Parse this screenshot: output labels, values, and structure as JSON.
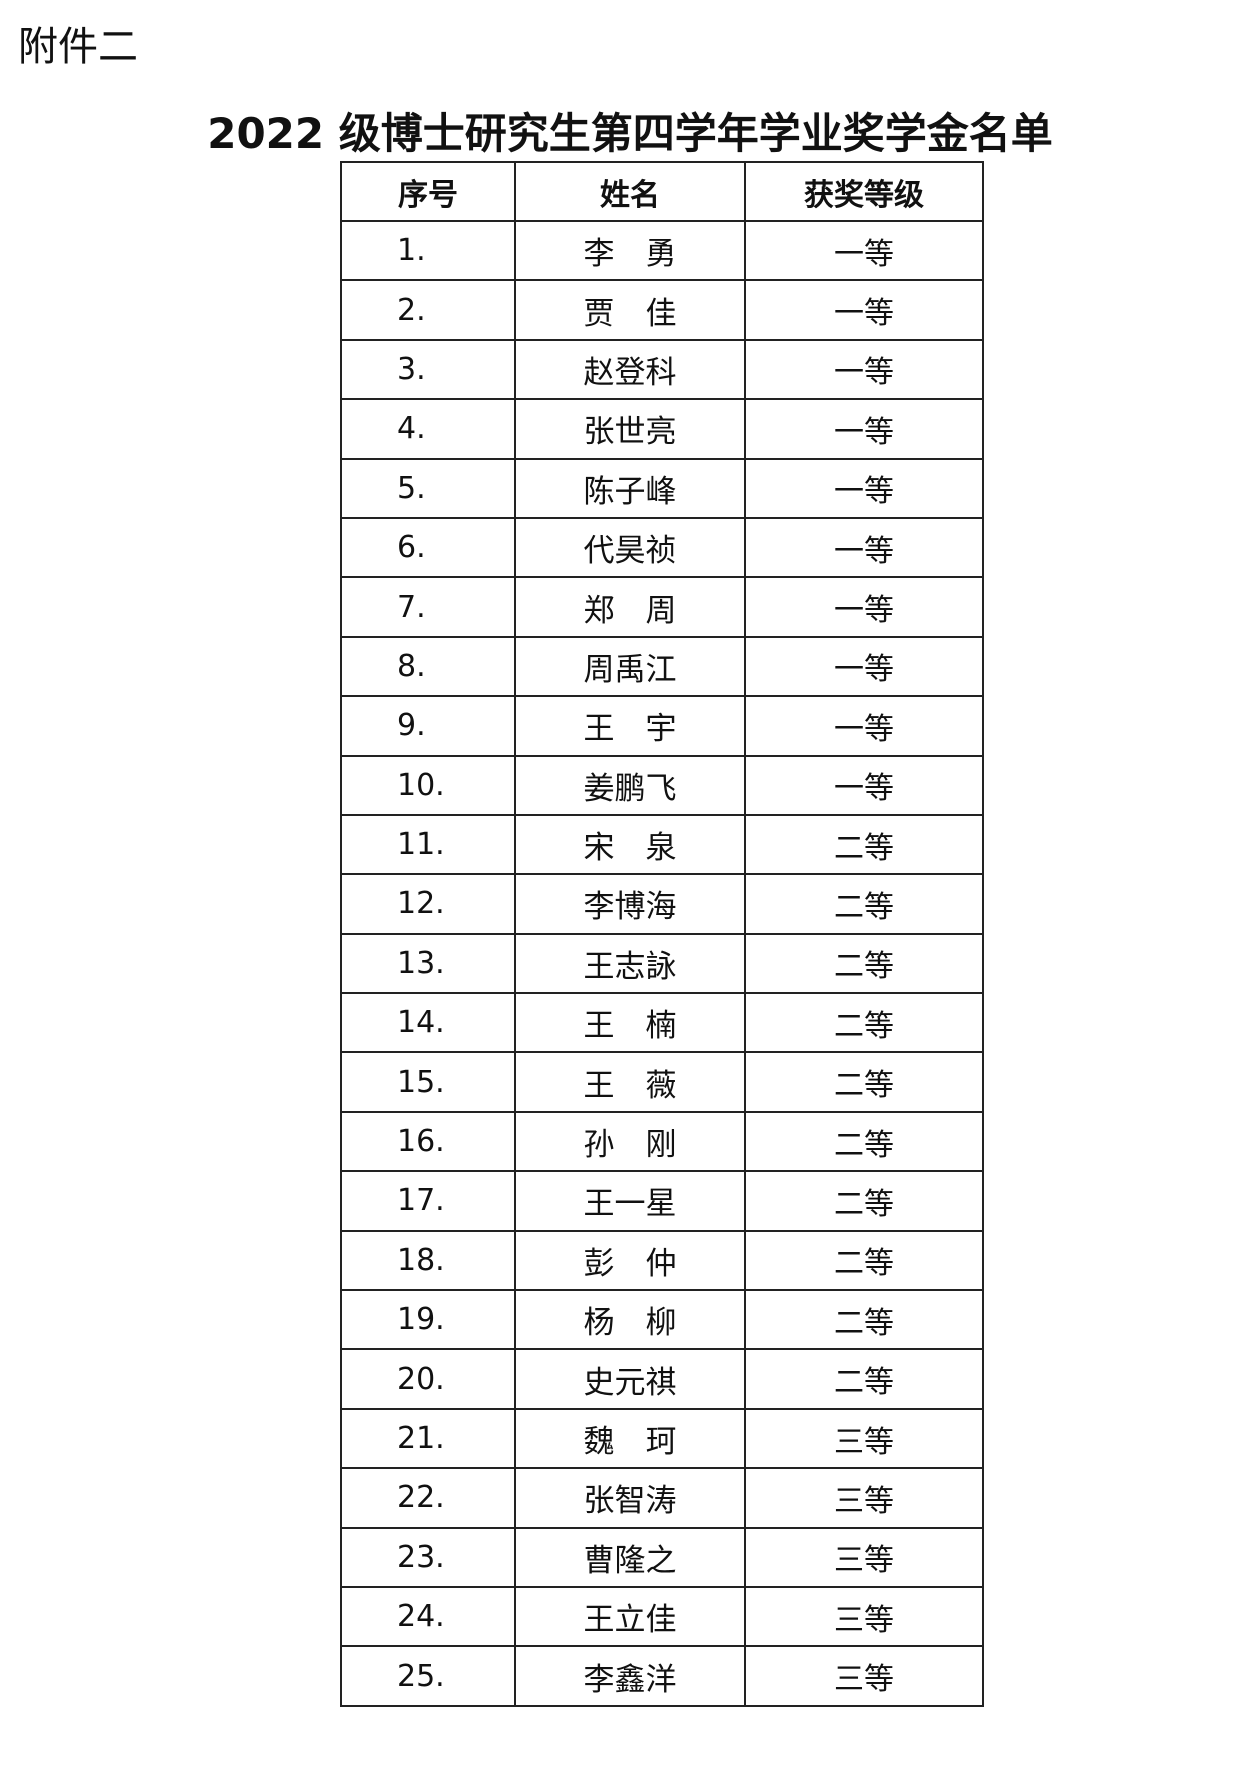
{
  "attachment_label": "附件二",
  "title": "2022 级博士研究生第四学年学业奖学金名单",
  "table": {
    "headers": [
      "序号",
      "姓名",
      "获奖等级"
    ],
    "rows": [
      [
        "1.",
        "李　勇",
        "一等"
      ],
      [
        "2.",
        "贾　佳",
        "一等"
      ],
      [
        "3.",
        "赵登科",
        "一等"
      ],
      [
        "4.",
        "张世亮",
        "一等"
      ],
      [
        "5.",
        "陈子峰",
        "一等"
      ],
      [
        "6.",
        "代昊祯",
        "一等"
      ],
      [
        "7.",
        "郑　周",
        "一等"
      ],
      [
        "8.",
        "周禹江",
        "一等"
      ],
      [
        "9.",
        "王　宇",
        "一等"
      ],
      [
        "10.",
        "姜鹏飞",
        "一等"
      ],
      [
        "11.",
        "宋　泉",
        "二等"
      ],
      [
        "12.",
        "李博海",
        "二等"
      ],
      [
        "13.",
        "王志詠",
        "二等"
      ],
      [
        "14.",
        "王　楠",
        "二等"
      ],
      [
        "15.",
        "王　薇",
        "二等"
      ],
      [
        "16.",
        "孙　刚",
        "二等"
      ],
      [
        "17.",
        "王一星",
        "二等"
      ],
      [
        "18.",
        "彭　仲",
        "二等"
      ],
      [
        "19.",
        "杨　柳",
        "二等"
      ],
      [
        "20.",
        "史元祺",
        "二等"
      ],
      [
        "21.",
        "魏　珂",
        "三等"
      ],
      [
        "22.",
        "张智涛",
        "三等"
      ],
      [
        "23.",
        "曹隆之",
        "三等"
      ],
      [
        "24.",
        "王立佳",
        "三等"
      ],
      [
        "25.",
        "李鑫洋",
        "三等"
      ]
    ]
  }
}
